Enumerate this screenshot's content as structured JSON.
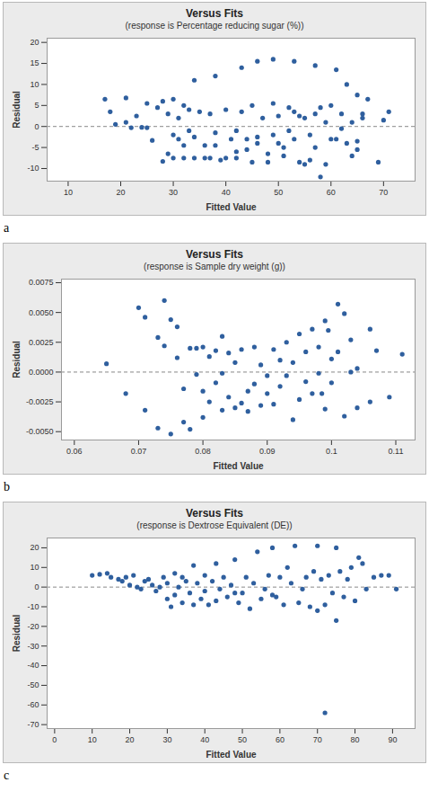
{
  "chart_data": [
    {
      "type": "scatter",
      "title": "Versus Fits",
      "subtitle": "(response is Percentage reducing sugar (%))",
      "x_label": "Fitted Value",
      "y_label": "Residual",
      "caption": "a",
      "color": "#2f5f9e",
      "hline": 0,
      "xlim": [
        6,
        76
      ],
      "ylim": [
        -13,
        21
      ],
      "xticks": [
        10,
        20,
        30,
        40,
        50,
        60,
        70
      ],
      "yticks": [
        -10,
        -5,
        0,
        5,
        10,
        15,
        20
      ],
      "x": [
        34,
        38,
        43,
        46,
        49,
        53,
        57,
        61,
        63,
        65,
        17,
        21,
        18,
        19,
        21,
        22,
        23,
        24,
        25,
        25,
        26,
        27,
        28,
        28,
        29,
        29,
        30,
        30,
        30,
        31,
        31,
        32,
        32,
        32,
        33,
        33,
        34,
        34,
        35,
        36,
        36,
        37,
        37,
        38,
        38,
        39,
        40,
        40,
        41,
        42,
        42,
        42,
        43,
        44,
        44,
        45,
        45,
        46,
        46,
        47,
        48,
        48,
        49,
        49,
        50,
        50,
        51,
        51,
        52,
        52,
        53,
        53,
        54,
        54,
        55,
        55,
        56,
        56,
        57,
        57,
        58,
        58,
        59,
        59,
        60,
        60,
        61,
        62,
        62,
        63,
        64,
        64,
        65,
        65,
        66,
        67,
        69,
        70,
        71,
        66
      ],
      "y": [
        11,
        12,
        14,
        15.5,
        16,
        15.5,
        14.5,
        13.5,
        10,
        7.5,
        6.5,
        6.8,
        3.5,
        0.5,
        1,
        -0.3,
        2.5,
        -0.2,
        5.5,
        -0.3,
        -3.3,
        4.5,
        6,
        -8.3,
        -6.5,
        3,
        -7.5,
        -2,
        6.5,
        2,
        -3,
        -7.5,
        -4.5,
        5,
        4,
        -1,
        -7.5,
        -2.5,
        3.5,
        -7.5,
        -4.5,
        -7.5,
        3,
        -1.5,
        -4.5,
        -8,
        -7.5,
        4,
        -3,
        -1,
        -6,
        -7.5,
        3.5,
        -3,
        -5.5,
        5,
        -8.5,
        -2.5,
        -4,
        2,
        -6.5,
        -8.5,
        5.5,
        -2,
        -4,
        2.5,
        -5,
        -7,
        4.5,
        -1,
        -3,
        3.5,
        -8.5,
        2.5,
        -9,
        2,
        -8,
        -2,
        3,
        -5,
        -12,
        4.5,
        -9,
        1,
        -3,
        5,
        -3,
        -0.5,
        3,
        -4,
        -7,
        1,
        -5.5,
        -3.5,
        3,
        6.5,
        -8.5,
        1.5,
        3.5,
        2
      ]
    },
    {
      "type": "scatter",
      "title": "Versus Fits",
      "subtitle": "(response is Sample dry weight (g))",
      "x_label": "Fitted Value",
      "y_label": "Residual",
      "caption": "b",
      "color": "#2f5f9e",
      "hline": 0,
      "xlim": [
        0.058,
        0.113
      ],
      "ylim": [
        -0.0057,
        0.0078
      ],
      "xticks": [
        0.06,
        0.07,
        0.08,
        0.09,
        0.1,
        0.11
      ],
      "yticks": [
        {
          "value": -0.005,
          "label": "-0.0050"
        },
        -0.0025,
        {
          "value": 0,
          "label": "0.0000"
        },
        0.0025,
        {
          "value": 0.005,
          "label": "0.0050"
        },
        0.0075
      ],
      "x": [
        0.065,
        0.068,
        0.07,
        0.071,
        0.071,
        0.073,
        0.073,
        0.074,
        0.074,
        0.075,
        0.075,
        0.076,
        0.076,
        0.077,
        0.077,
        0.078,
        0.078,
        0.079,
        0.079,
        0.08,
        0.08,
        0.08,
        0.081,
        0.081,
        0.082,
        0.082,
        0.083,
        0.083,
        0.083,
        0.084,
        0.084,
        0.085,
        0.085,
        0.086,
        0.086,
        0.087,
        0.087,
        0.088,
        0.088,
        0.089,
        0.089,
        0.09,
        0.09,
        0.091,
        0.091,
        0.092,
        0.092,
        0.093,
        0.093,
        0.094,
        0.094,
        0.095,
        0.095,
        0.096,
        0.096,
        0.097,
        0.097,
        0.098,
        0.098,
        0.099,
        0.099,
        0.1,
        0.1,
        0.101,
        0.101,
        0.102,
        0.102,
        0.103,
        0.103,
        0.104,
        0.104,
        0.106,
        0.106,
        0.107,
        0.109,
        0.111,
        0.0995,
        0.0985
      ],
      "y": [
        0.0007,
        -0.0018,
        0.0054,
        0.0046,
        -0.0032,
        0.0029,
        -0.0047,
        0.006,
        0.0022,
        0.0044,
        -0.0052,
        0.0038,
        0.0012,
        -0.0014,
        -0.0042,
        0.002,
        -0.0048,
        0.002,
        -0.0002,
        -0.0016,
        -0.0038,
        0.0021,
        0.0013,
        -0.0025,
        0.0018,
        -0.0009,
        -0.0032,
        0.003,
        -0.0001,
        0.0016,
        -0.0021,
        -0.003,
        0.0008,
        0.0019,
        -0.0026,
        -0.0016,
        -0.0033,
        0.0021,
        -0.001,
        -0.0028,
        0.0006,
        -0.0003,
        -0.0018,
        0.0019,
        -0.0027,
        0.001,
        -0.0012,
        0.0025,
        -0.0003,
        -0.004,
        0.0008,
        -0.0023,
        0.0032,
        0.0017,
        -0.0008,
        0.0036,
        -0.0018,
        0.0021,
        -0.0001,
        0.0043,
        -0.0031,
        0.0011,
        -0.0009,
        0.0057,
        0.0017,
        0.0049,
        -0.0037,
        0,
        0.0027,
        0.0003,
        -0.003,
        0.0036,
        -0.0025,
        0.0018,
        -0.0021,
        0.0015,
        0.0035,
        -0.0018
      ]
    },
    {
      "type": "scatter",
      "title": "Versus Fits",
      "subtitle": "(response is Dextrose Equivalent (DE))",
      "x_label": "Fitted Value",
      "y_label": "Residual",
      "caption": "c",
      "color": "#2f5f9e",
      "hline": 0,
      "xlim": [
        -2,
        96
      ],
      "ylim": [
        -72,
        25
      ],
      "xticks": [
        0,
        10,
        20,
        30,
        40,
        50,
        60,
        70,
        80,
        90
      ],
      "yticks": [
        -70,
        -60,
        -50,
        -40,
        -30,
        -20,
        -10,
        0,
        10,
        20
      ],
      "x": [
        10,
        12,
        14,
        15,
        17,
        18,
        19,
        20,
        21,
        22,
        23,
        24,
        25,
        26,
        27,
        28,
        29,
        30,
        30,
        31,
        32,
        32,
        33,
        34,
        34,
        35,
        36,
        37,
        37,
        38,
        39,
        40,
        40,
        41,
        42,
        43,
        43,
        44,
        45,
        46,
        47,
        48,
        48,
        49,
        50,
        51,
        52,
        53,
        54,
        55,
        56,
        57,
        58,
        58,
        59,
        60,
        61,
        62,
        63,
        64,
        65,
        66,
        67,
        68,
        69,
        70,
        70,
        71,
        72,
        72,
        73,
        74,
        75,
        75,
        76,
        77,
        78,
        79,
        80,
        81,
        82,
        83,
        85,
        87,
        89,
        91
      ],
      "y": [
        6,
        6.5,
        7,
        5,
        4,
        3,
        5,
        1,
        6,
        0,
        -1,
        3,
        4,
        1,
        -2,
        0,
        5,
        -6,
        2,
        -10,
        7,
        -4,
        0,
        -8,
        5,
        3,
        -3,
        11,
        -9,
        2,
        -6,
        6,
        -2,
        -9,
        3,
        12,
        -7,
        -1,
        5,
        -5,
        1,
        14,
        -3,
        -8,
        -3,
        5,
        -11,
        2,
        18,
        -6,
        -1,
        6,
        20,
        -4,
        -5,
        5,
        -9,
        10,
        2,
        21,
        -8,
        -1,
        5,
        -10,
        8,
        21,
        -12,
        4,
        -64,
        -9,
        6,
        -3,
        20,
        -17,
        8,
        -5,
        4,
        10,
        -7,
        15,
        12,
        -1,
        5,
        6,
        6,
        -1
      ]
    }
  ]
}
